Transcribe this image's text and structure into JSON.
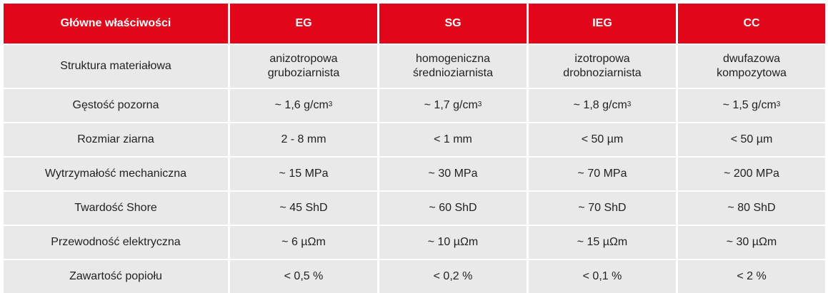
{
  "header": {
    "label": "Główne właściwości",
    "columns": [
      "EG",
      "SG",
      "IEG",
      "CC"
    ]
  },
  "rows": [
    {
      "label": "Struktura materiałowa",
      "values": [
        [
          "anizotropowa",
          "gruboziarnista"
        ],
        [
          "homogeniczna",
          "średnioziarnista"
        ],
        [
          "izotropowa",
          "drobnoziarnista"
        ],
        [
          "dwufazowa",
          "kompozytowa"
        ]
      ]
    },
    {
      "label": "Gęstość pozorna",
      "values": [
        "~ 1,6 g/cm",
        "~ 1,7 g/cm",
        "~ 1,8 g/cm",
        "~ 1,5 g/cm"
      ],
      "sup": "3"
    },
    {
      "label": "Rozmiar ziarna",
      "values": [
        "2 - 8 mm",
        "< 1 mm",
        "< 50 µm",
        "< 50 µm"
      ]
    },
    {
      "label": "Wytrzymałość mechaniczna",
      "values": [
        "~ 15 MPa",
        "~ 30 MPa",
        "~ 70 MPa",
        "~ 200 MPa"
      ]
    },
    {
      "label": "Twardość Shore",
      "values": [
        "~ 45 ShD",
        "~ 60 ShD",
        "~ 70 ShD",
        "~ 80 ShD"
      ]
    },
    {
      "label": "Przewodność elektryczna",
      "values": [
        "~ 6 µΩm",
        "~ 10 µΩm",
        "~ 15 µΩm",
        "~ 30 µΩm"
      ]
    },
    {
      "label": "Zawartość popiołu",
      "values": [
        "< 0,5 %",
        "< 0,2 %",
        "< 0,1 %",
        "< 2 %"
      ]
    }
  ],
  "colors": {
    "header_bg": "#e2061b",
    "header_text": "#ffffff",
    "cell_bg": "#e9e9e9",
    "text": "#222222"
  }
}
